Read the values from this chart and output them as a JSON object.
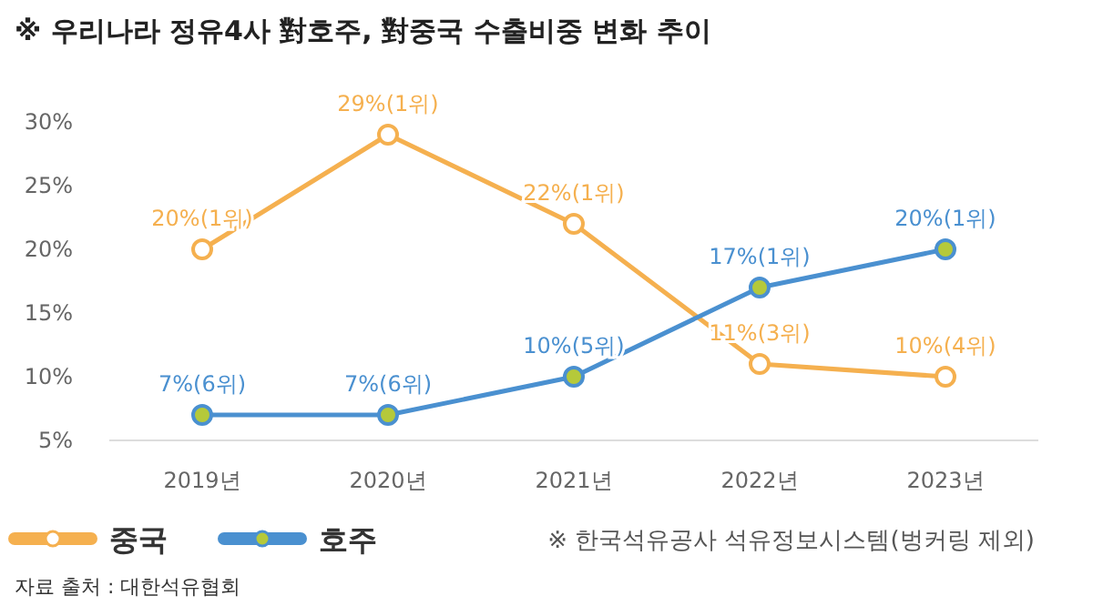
{
  "chart_data": {
    "type": "line",
    "title": "※ 우리나라 정유4사 對호주, 對중국 수출비중 변화 추이",
    "categories": [
      "2019년",
      "2020년",
      "2021년",
      "2022년",
      "2023년"
    ],
    "series": [
      {
        "name": "중국",
        "color": "#f5b04f",
        "values": [
          20,
          29,
          22,
          11,
          10
        ],
        "value_labels": [
          "20%(1위)",
          "29%(1위)",
          "22%(1위)",
          "11%(3위)",
          "10%(4위)"
        ]
      },
      {
        "name": "호주",
        "color": "#4a90d0",
        "values": [
          7,
          7,
          10,
          17,
          20
        ],
        "value_labels": [
          "7%(6위)",
          "7%(6위)",
          "10%(5위)",
          "17%(1위)",
          "20%(1위)"
        ]
      }
    ],
    "ylim": [
      5,
      30
    ],
    "yticks": [
      {
        "value": 5,
        "label": "5%"
      },
      {
        "value": 10,
        "label": "10%"
      },
      {
        "value": 15,
        "label": "15%"
      },
      {
        "value": 20,
        "label": "20%"
      },
      {
        "value": 25,
        "label": "25%"
      },
      {
        "value": 30,
        "label": "30%"
      }
    ],
    "marker": "circle",
    "line_style": "solid",
    "legend": "bottom left",
    "grid": false,
    "annotations": [
      "※ 한국석유공사 석유정보시스템(벙커링 제외)",
      "자료 출처 : 대한석유협회"
    ]
  }
}
